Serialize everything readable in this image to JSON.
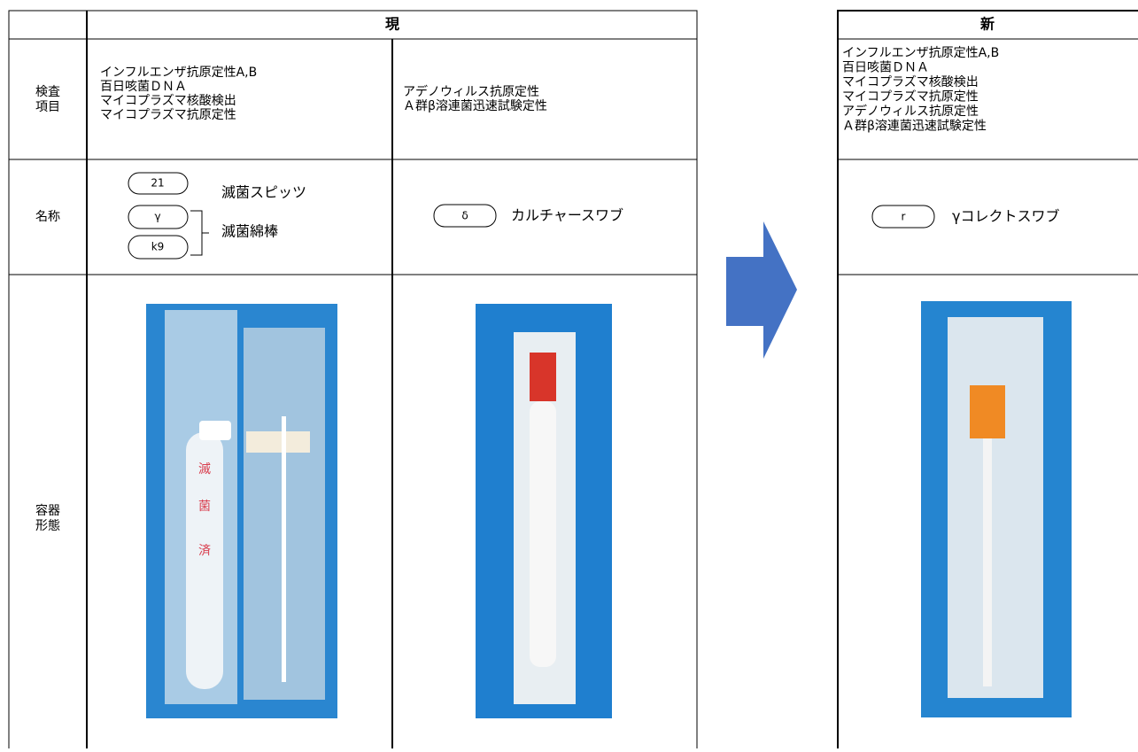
{
  "left": {
    "header": "現",
    "rows": [
      {
        "label": [
          "検査",
          "項目"
        ],
        "col1": [
          "インフルエンザ抗原定性A,B",
          "百日咳菌ＤＮＡ",
          "マイコプラズマ核酸検出",
          "マイコプラズマ抗原定性"
        ],
        "col2": [
          "アデノウィルス抗原定性",
          "Ａ群β溶連菌迅速試験定性"
        ]
      },
      {
        "label": [
          "名称"
        ],
        "col1": {
          "badges": [
            "21",
            "γ",
            "k9"
          ],
          "names": [
            "滅菌スピッツ",
            "滅菌綿棒"
          ]
        },
        "col2": {
          "badges": [
            "δ"
          ],
          "names": [
            "カルチャースワブ"
          ]
        }
      },
      {
        "label": [
          "容器",
          "形態"
        ],
        "photo_text": [
          "滅",
          "菌",
          "済"
        ]
      }
    ]
  },
  "right": {
    "header": "新",
    "items": [
      "インフルエンザ抗原定性A,B",
      "百日咳菌ＤＮＡ",
      "マイコプラズマ核酸検出",
      "マイコプラズマ抗原定性",
      "アデノウィルス抗原定性",
      "Ａ群β溶連菌迅速試験定性"
    ],
    "badge": "r",
    "name": "γコレクトスワブ"
  }
}
